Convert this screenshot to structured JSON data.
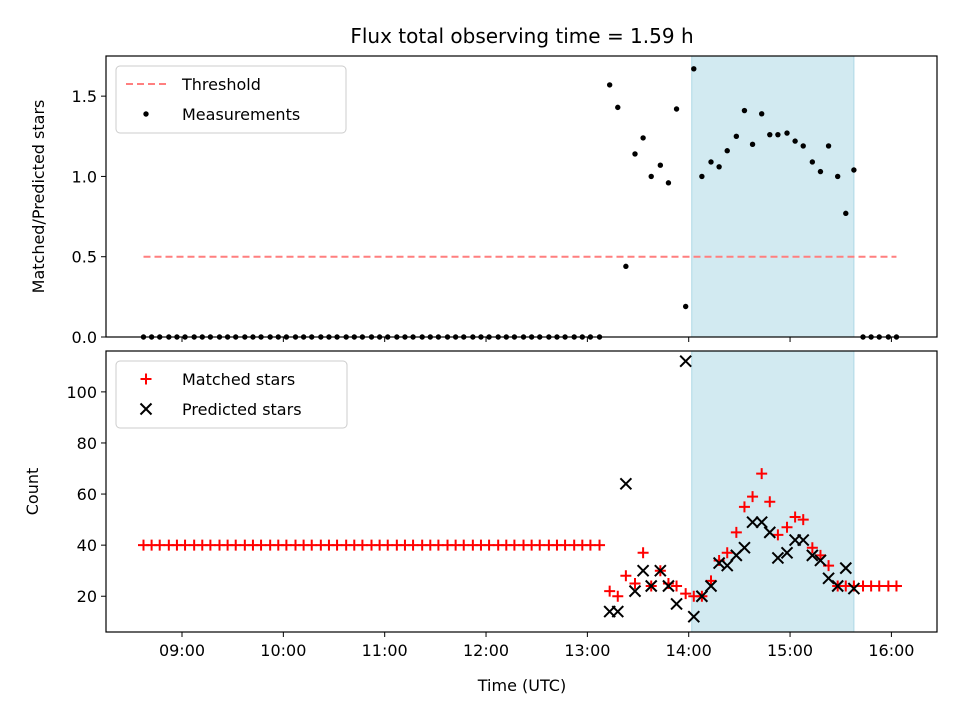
{
  "chart_data": {
    "type": "scatter",
    "title": "Flux total observing time = 1.59 h",
    "xlabel": "Time (UTC)",
    "x_unit": "hours UTC",
    "xlim": [
      8.25,
      16.45
    ],
    "xticks": [
      9,
      10,
      11,
      12,
      13,
      14,
      15,
      16
    ],
    "xtick_labels": [
      "09:00",
      "10:00",
      "11:00",
      "12:00",
      "13:00",
      "14:00",
      "15:00",
      "16:00"
    ],
    "shaded_interval": [
      14.03,
      15.63
    ],
    "shade_color": "#add8e6",
    "panels": [
      {
        "name": "ratio",
        "ylabel": "Matched/Predicted stars",
        "ylim": [
          0,
          1.75
        ],
        "yticks": [
          0.0,
          0.5,
          1.0,
          1.5
        ],
        "ytick_labels": [
          "0.0",
          "0.5",
          "1.0",
          "1.5"
        ],
        "legend_position": "upper-left",
        "series": [
          {
            "name": "Threshold",
            "kind": "dashed-line",
            "color": "#ff7f7f",
            "x": [
              8.62,
              16.05
            ],
            "y": [
              0.5,
              0.5
            ]
          },
          {
            "name": "Measurements",
            "kind": "dot",
            "color": "#000000",
            "x": [
              8.62,
              8.7,
              8.78,
              8.87,
              8.95,
              9.03,
              9.12,
              9.2,
              9.28,
              9.37,
              9.45,
              9.53,
              9.62,
              9.7,
              9.78,
              9.87,
              9.95,
              10.03,
              10.12,
              10.2,
              10.28,
              10.37,
              10.45,
              10.53,
              10.62,
              10.7,
              10.78,
              10.87,
              10.95,
              11.03,
              11.12,
              11.2,
              11.28,
              11.37,
              11.45,
              11.53,
              11.62,
              11.7,
              11.78,
              11.87,
              11.95,
              12.03,
              12.12,
              12.2,
              12.28,
              12.37,
              12.45,
              12.53,
              12.62,
              12.7,
              12.78,
              12.87,
              12.95,
              13.03,
              13.12,
              13.22,
              13.3,
              13.38,
              13.47,
              13.55,
              13.63,
              13.72,
              13.8,
              13.88,
              13.97,
              14.05,
              14.13,
              14.22,
              14.3,
              14.38,
              14.47,
              14.55,
              14.63,
              14.72,
              14.8,
              14.88,
              14.97,
              15.05,
              15.13,
              15.22,
              15.3,
              15.38,
              15.47,
              15.55,
              15.63,
              15.72,
              15.8,
              15.88,
              15.97,
              16.05
            ],
            "y": [
              0,
              0,
              0,
              0,
              0,
              0,
              0,
              0,
              0,
              0,
              0,
              0,
              0,
              0,
              0,
              0,
              0,
              0,
              0,
              0,
              0,
              0,
              0,
              0,
              0,
              0,
              0,
              0,
              0,
              0,
              0,
              0,
              0,
              0,
              0,
              0,
              0,
              0,
              0,
              0,
              0,
              0,
              0,
              0,
              0,
              0,
              0,
              0,
              0,
              0,
              0,
              0,
              0,
              0,
              0,
              1.57,
              1.43,
              0.44,
              1.14,
              1.24,
              1.0,
              1.07,
              0.96,
              1.42,
              0.19,
              1.67,
              1.0,
              1.09,
              1.06,
              1.16,
              1.25,
              1.41,
              1.2,
              1.39,
              1.26,
              1.26,
              1.27,
              1.22,
              1.19,
              1.09,
              1.03,
              1.19,
              1.0,
              0.77,
              1.04,
              0,
              0,
              0,
              0,
              0
            ]
          }
        ]
      },
      {
        "name": "counts",
        "ylabel": "Count",
        "ylim": [
          6,
          116
        ],
        "yticks": [
          20,
          40,
          60,
          80,
          100
        ],
        "ytick_labels": [
          "20",
          "40",
          "60",
          "80",
          "100"
        ],
        "legend_position": "upper-left",
        "series": [
          {
            "name": "Matched stars",
            "kind": "plus",
            "color": "#ff0000",
            "x": [
              8.62,
              8.7,
              8.78,
              8.87,
              8.95,
              9.03,
              9.12,
              9.2,
              9.28,
              9.37,
              9.45,
              9.53,
              9.62,
              9.7,
              9.78,
              9.87,
              9.95,
              10.03,
              10.12,
              10.2,
              10.28,
              10.37,
              10.45,
              10.53,
              10.62,
              10.7,
              10.78,
              10.87,
              10.95,
              11.03,
              11.12,
              11.2,
              11.28,
              11.37,
              11.45,
              11.53,
              11.62,
              11.7,
              11.78,
              11.87,
              11.95,
              12.03,
              12.12,
              12.2,
              12.28,
              12.37,
              12.45,
              12.53,
              12.62,
              12.7,
              12.78,
              12.87,
              12.95,
              13.03,
              13.12,
              13.22,
              13.3,
              13.38,
              13.47,
              13.55,
              13.63,
              13.72,
              13.8,
              13.88,
              13.97,
              14.05,
              14.13,
              14.22,
              14.3,
              14.38,
              14.47,
              14.55,
              14.63,
              14.72,
              14.8,
              14.88,
              14.97,
              15.05,
              15.13,
              15.22,
              15.3,
              15.38,
              15.47,
              15.55,
              15.63,
              15.72,
              15.8,
              15.88,
              15.97,
              16.05
            ],
            "y": [
              40,
              40,
              40,
              40,
              40,
              40,
              40,
              40,
              40,
              40,
              40,
              40,
              40,
              40,
              40,
              40,
              40,
              40,
              40,
              40,
              40,
              40,
              40,
              40,
              40,
              40,
              40,
              40,
              40,
              40,
              40,
              40,
              40,
              40,
              40,
              40,
              40,
              40,
              40,
              40,
              40,
              40,
              40,
              40,
              40,
              40,
              40,
              40,
              40,
              40,
              40,
              40,
              40,
              40,
              40,
              22,
              20,
              28,
              25,
              37,
              24,
              30,
              25,
              24,
              21,
              20,
              20,
              26,
              34,
              37,
              45,
              55,
              59,
              68,
              57,
              44,
              47,
              51,
              50,
              39,
              36,
              32,
              24,
              24,
              24,
              24,
              24,
              24,
              24,
              24
            ]
          },
          {
            "name": "Predicted stars",
            "kind": "x",
            "color": "#000000",
            "x": [
              13.22,
              13.3,
              13.38,
              13.47,
              13.55,
              13.63,
              13.72,
              13.8,
              13.88,
              13.97,
              14.05,
              14.13,
              14.22,
              14.3,
              14.38,
              14.47,
              14.55,
              14.63,
              14.72,
              14.8,
              14.88,
              14.97,
              15.05,
              15.13,
              15.22,
              15.3,
              15.38,
              15.47,
              15.55,
              15.63
            ],
            "y": [
              14,
              14,
              64,
              22,
              30,
              24,
              30,
              24,
              17,
              112,
              12,
              20,
              24,
              33,
              32,
              36,
              39,
              49,
              49,
              45,
              35,
              37,
              42,
              42,
              36,
              34,
              27,
              24,
              31,
              23
            ]
          }
        ]
      }
    ]
  }
}
